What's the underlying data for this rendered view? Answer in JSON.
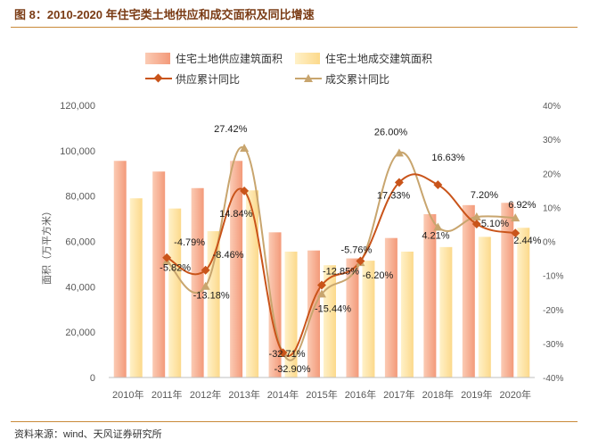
{
  "figure": {
    "title": "图 8：2010-2020 年住宅类土地供应和成交面积及同比增速",
    "source": "资料来源：wind、天风证券研究所"
  },
  "colors": {
    "supply_bar": "#f6a98a",
    "deal_bar": "#fde4a6",
    "supply_line": "#c9541a",
    "deal_line": "#c8a56e",
    "label_line": "#a6a6a6"
  },
  "chart_data": {
    "type": "bar",
    "categories": [
      "2010年",
      "2011年",
      "2012年",
      "2013年",
      "2014年",
      "2015年",
      "2016年",
      "2017年",
      "2018年",
      "2019年",
      "2020年"
    ],
    "series": [
      {
        "name": "住宅土地供应建筑面积",
        "kind": "bar",
        "axis": "left",
        "values": [
          95500,
          90800,
          83500,
          95500,
          64000,
          56000,
          52500,
          61500,
          72000,
          76000,
          77000
        ]
      },
      {
        "name": "住宅土地成交建筑面积",
        "kind": "bar",
        "axis": "left",
        "values": [
          79000,
          74500,
          64500,
          82500,
          55500,
          49500,
          51500,
          55500,
          57500,
          62000,
          66000
        ]
      },
      {
        "name": "供应累计同比",
        "kind": "line",
        "axis": "right",
        "values": [
          null,
          -4.79,
          -8.46,
          14.84,
          -32.71,
          -12.85,
          -5.76,
          17.33,
          16.63,
          5.1,
          2.44
        ],
        "labels": [
          null,
          "-4.79%",
          "-8.46%",
          "14.84%",
          "-32.71%",
          "-12.85%",
          "-5.76%",
          "17.33%",
          "16.63%",
          "5.10%",
          "2.44%"
        ]
      },
      {
        "name": "成交累计同比",
        "kind": "line",
        "axis": "right",
        "values": [
          null,
          -5.82,
          -13.18,
          27.42,
          -32.9,
          -15.44,
          -6.2,
          26.0,
          4.21,
          7.2,
          6.92
        ],
        "labels": [
          null,
          "-5.82%",
          "-13.18%",
          "27.42%",
          "-32.90%",
          "-15.44%",
          "-6.20%",
          "26.00%",
          "4.21%",
          "7.20%",
          "6.92%"
        ]
      }
    ],
    "ylabel": "面积（万平方米）",
    "ylim": [
      0,
      120000
    ],
    "yticks": [
      0,
      20000,
      40000,
      60000,
      80000,
      100000,
      120000
    ],
    "ytick_labels": [
      "0",
      "20,000",
      "40,000",
      "60,000",
      "80,000",
      "100,000",
      "120,000"
    ],
    "y2lim": [
      -40,
      40
    ],
    "y2ticks": [
      -40,
      -30,
      -20,
      -10,
      0,
      10,
      20,
      30,
      40
    ],
    "y2tick_labels": [
      "-40%",
      "-30%",
      "-20%",
      "-10%",
      "0%",
      "10%",
      "20%",
      "30%",
      "40%"
    ],
    "legend": [
      "住宅土地供应建筑面积",
      "住宅土地成交建筑面积",
      "供应累计同比",
      "成交累计同比"
    ],
    "legend_position": "top"
  }
}
